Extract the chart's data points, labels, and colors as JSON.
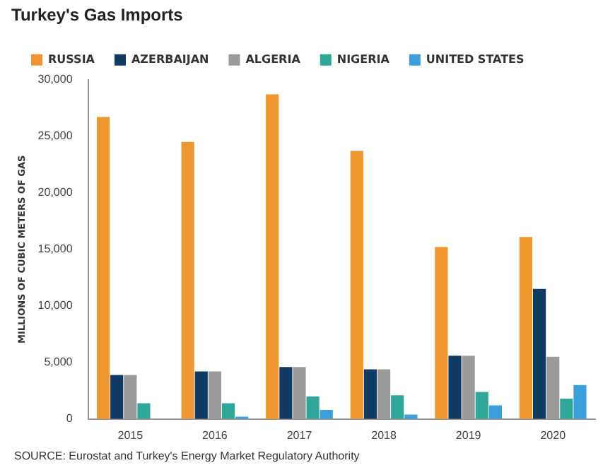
{
  "chart_data": {
    "type": "bar",
    "title": "Turkey's Gas Imports",
    "ylabel": "MILLIONS OF CUBIC METERS OF GAS",
    "categories": [
      "2015",
      "2016",
      "2017",
      "2018",
      "2019",
      "2020"
    ],
    "series": [
      {
        "name": "RUSSIA",
        "color": "#f0962e",
        "values": [
          26700,
          24500,
          28700,
          23700,
          15200,
          16100
        ]
      },
      {
        "name": "AZERBAIJAN",
        "color": "#0f3a63",
        "values": [
          3900,
          4200,
          4600,
          4400,
          5600,
          11500
        ]
      },
      {
        "name": "ALGERIA",
        "color": "#9a9a9a",
        "values": [
          3900,
          4200,
          4600,
          4400,
          5600,
          5500
        ]
      },
      {
        "name": "NIGERIA",
        "color": "#2fa89a",
        "values": [
          1400,
          1400,
          2000,
          2100,
          2400,
          1800
        ]
      },
      {
        "name": "UNITED STATES",
        "color": "#3aa0dc",
        "values": [
          null,
          200,
          800,
          400,
          1200,
          3000
        ]
      }
    ],
    "ylim": [
      0,
      30000
    ],
    "yticks": [
      {
        "value": 0,
        "label": "0"
      },
      {
        "value": 5000,
        "label": "5,000"
      },
      {
        "value": 10000,
        "label": "10,000"
      },
      {
        "value": 15000,
        "label": "15,000"
      },
      {
        "value": 20000,
        "label": "20,000"
      },
      {
        "value": 25000,
        "label": "25,000"
      },
      {
        "value": 30000,
        "label": "30,000"
      }
    ],
    "grid": false,
    "legend": "top left",
    "annotations": [
      "SOURCE: Eurostat and Turkey's Energy Market Regulatory Authority"
    ]
  }
}
